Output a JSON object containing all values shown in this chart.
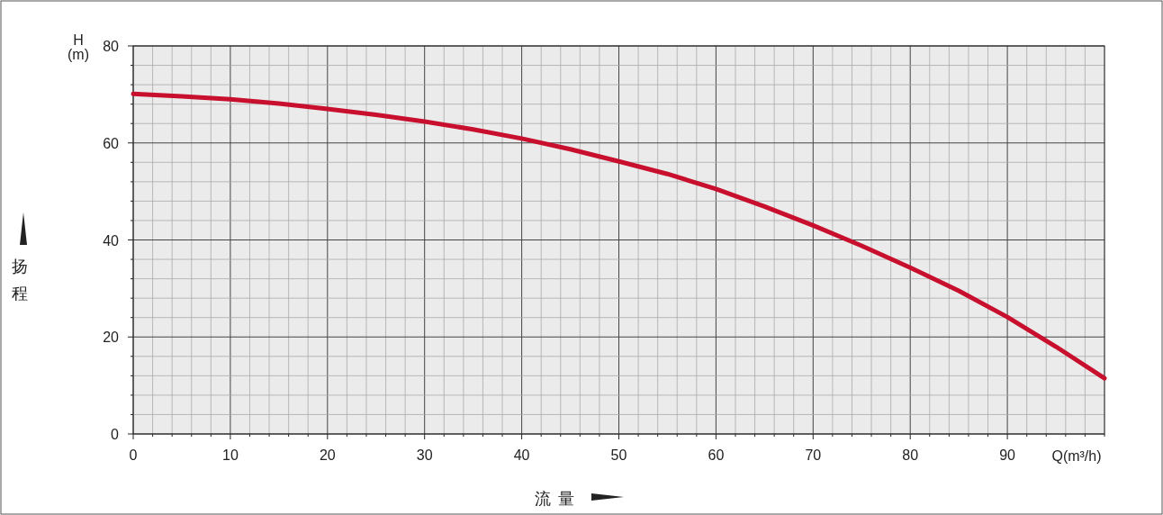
{
  "chart_data": {
    "type": "line",
    "xlabel": "流量",
    "ylabel": "扬程",
    "annotations": [
      "H",
      "(m)",
      "Q(m³/h)"
    ],
    "x": [
      0,
      5,
      10,
      15,
      20,
      25,
      30,
      35,
      40,
      45,
      50,
      55,
      60,
      65,
      70,
      75,
      80,
      85,
      90,
      95,
      100
    ],
    "series": [
      {
        "color": "#c8102e",
        "values": [
          70.1,
          69.6,
          69.0,
          68.1,
          67.0,
          65.8,
          64.4,
          62.8,
          60.9,
          58.7,
          56.2,
          53.6,
          50.5,
          46.9,
          43.0,
          38.8,
          34.3,
          29.5,
          24.1,
          18.0,
          11.5
        ]
      }
    ],
    "xlim": [
      0,
      100
    ],
    "ylim": [
      0,
      80
    ],
    "xticks": [
      0,
      {
        "value": 2,
        "label": null
      },
      {
        "value": 4,
        "label": null
      },
      {
        "value": 6,
        "label": null
      },
      {
        "value": 8,
        "label": null
      },
      10,
      {
        "value": 12,
        "label": null
      },
      {
        "value": 14,
        "label": null
      },
      {
        "value": 16,
        "label": null
      },
      {
        "value": 18,
        "label": null
      },
      20,
      {
        "value": 22,
        "label": null
      },
      {
        "value": 24,
        "label": null
      },
      {
        "value": 26,
        "label": null
      },
      {
        "value": 28,
        "label": null
      },
      30,
      {
        "value": 32,
        "label": null
      },
      {
        "value": 34,
        "label": null
      },
      {
        "value": 36,
        "label": null
      },
      {
        "value": 38,
        "label": null
      },
      40,
      {
        "value": 42,
        "label": null
      },
      {
        "value": 44,
        "label": null
      },
      {
        "value": 46,
        "label": null
      },
      {
        "value": 48,
        "label": null
      },
      50,
      {
        "value": 52,
        "label": null
      },
      {
        "value": 54,
        "label": null
      },
      {
        "value": 56,
        "label": null
      },
      {
        "value": 58,
        "label": null
      },
      60,
      {
        "value": 62,
        "label": null
      },
      {
        "value": 64,
        "label": null
      },
      {
        "value": 66,
        "label": null
      },
      {
        "value": 68,
        "label": null
      },
      70,
      {
        "value": 72,
        "label": null
      },
      {
        "value": 74,
        "label": null
      },
      {
        "value": 76,
        "label": null
      },
      {
        "value": 78,
        "label": null
      },
      80,
      {
        "value": 82,
        "label": null
      },
      {
        "value": 84,
        "label": null
      },
      {
        "value": 86,
        "label": null
      },
      {
        "value": 88,
        "label": null
      },
      90,
      {
        "value": 92,
        "label": null
      },
      {
        "value": 94,
        "label": null
      },
      {
        "value": 96,
        "label": null
      },
      {
        "value": 98,
        "label": null
      },
      {
        "value": 100,
        "label": null
      }
    ],
    "yticks": [
      0,
      {
        "value": 4,
        "label": null
      },
      {
        "value": 8,
        "label": null
      },
      {
        "value": 12,
        "label": null
      },
      {
        "value": 16,
        "label": null
      },
      20,
      {
        "value": 24,
        "label": null
      },
      {
        "value": 28,
        "label": null
      },
      {
        "value": 32,
        "label": null
      },
      {
        "value": 36,
        "label": null
      },
      40,
      {
        "value": 44,
        "label": null
      },
      {
        "value": 48,
        "label": null
      },
      {
        "value": 52,
        "label": null
      },
      {
        "value": 56,
        "label": null
      },
      60,
      {
        "value": 64,
        "label": null
      },
      {
        "value": 68,
        "label": null
      },
      {
        "value": 72,
        "label": null
      },
      {
        "value": 76,
        "label": null
      },
      80
    ],
    "grid": true,
    "marker": "none",
    "line_style": "solid"
  }
}
